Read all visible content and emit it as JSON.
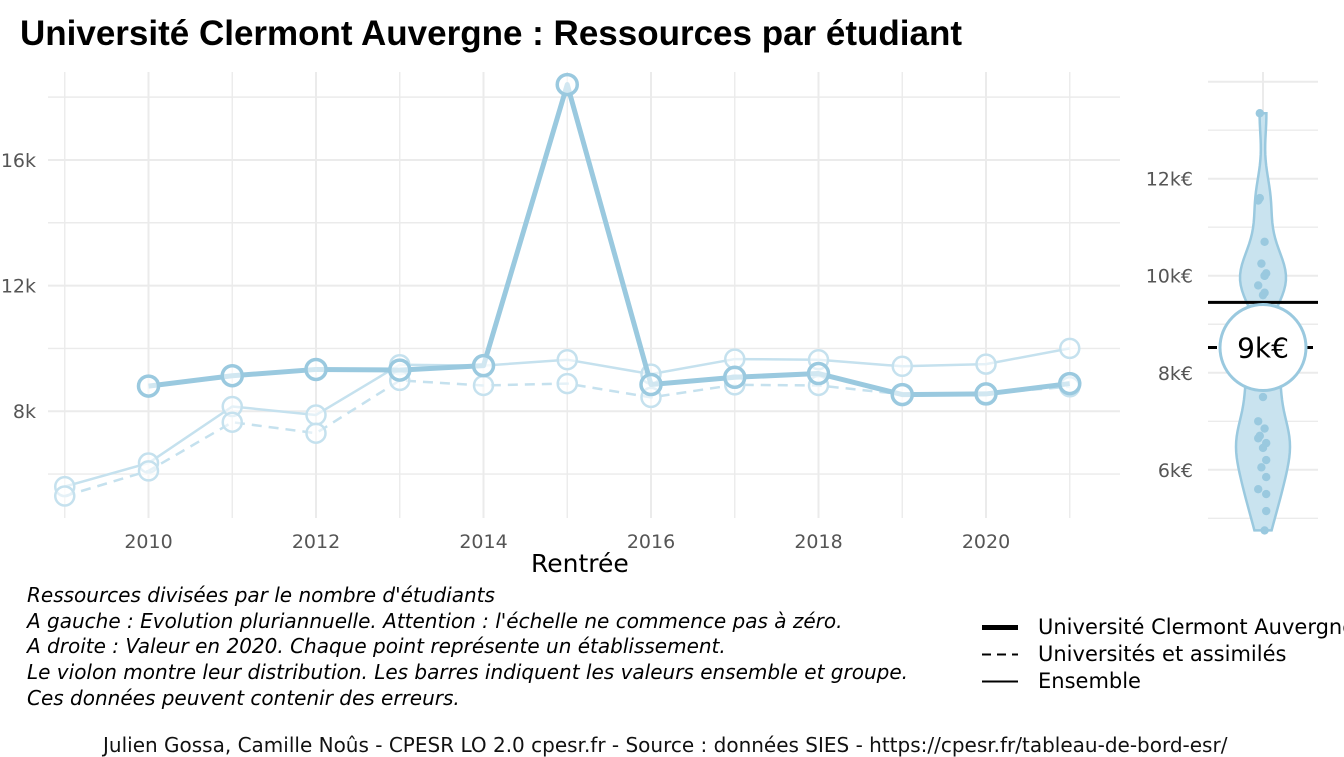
{
  "title": "Université Clermont Auvergne  :  Ressources par étudiant",
  "xlabel": "Rentrée",
  "notes": [
    "Ressources divisées par le nombre d'étudiants",
    "A gauche : Evolution pluriannuelle. Attention : l'échelle ne commence pas à zéro.",
    "A droite : Valeur en 2020. Chaque point représente un établissement.",
    "Le violon montre leur distribution. Les barres indiquent les valeurs ensemble et groupe.",
    "Ces données peuvent contenir des erreurs."
  ],
  "legend": [
    {
      "label": "Université Clermont Auvergne",
      "style": "thick-solid"
    },
    {
      "label": "Universités et assimilés",
      "style": "dashed"
    },
    {
      "label": "Ensemble",
      "style": "thin-solid"
    }
  ],
  "caption": "Julien Gossa, Camille Noûs - CPESR LO 2.0 cpesr.fr - Source : données SIES - https://cpesr.fr/tableau-de-bord-esr/",
  "colors": {
    "line": "#9ac9df",
    "line_light": "#c5e1ee",
    "grid": "#ebebeb",
    "violin_fill": "#c9e3ef"
  },
  "chart_data": [
    {
      "type": "line",
      "xlabel": "Rentrée",
      "ylabel": "",
      "x_ticks": [
        "2010",
        "2012",
        "2014",
        "2016",
        "2018",
        "2020"
      ],
      "y_ticks": [
        "8k",
        "12k",
        "16k"
      ],
      "xlim": [
        2008.8,
        2021.6
      ],
      "ylim": [
        4600,
        18800
      ],
      "grid": true,
      "series": [
        {
          "name": "Université Clermont Auvergne",
          "style": "thick-solid",
          "x": [
            2010,
            2011,
            2012,
            2013,
            2014,
            2015,
            2016,
            2017,
            2018,
            2019,
            2020,
            2021
          ],
          "values": [
            8800,
            9130,
            9330,
            9310,
            9450,
            18400,
            8850,
            9080,
            9200,
            8530,
            8550,
            8880
          ]
        },
        {
          "name": "Universités et assimilés",
          "style": "dashed",
          "x": [
            2009,
            2010,
            2011,
            2012,
            2013,
            2014,
            2015,
            2016,
            2017,
            2018,
            2019,
            2020,
            2021
          ],
          "values": [
            5300,
            6100,
            7650,
            7300,
            8980,
            8820,
            8880,
            8440,
            8840,
            8820,
            8540,
            8570,
            8780
          ]
        },
        {
          "name": "Ensemble",
          "style": "thin-solid",
          "x": [
            2009,
            2010,
            2011,
            2012,
            2013,
            2014,
            2015,
            2016,
            2017,
            2018,
            2019,
            2020,
            2021
          ],
          "values": [
            5600,
            6350,
            8150,
            7880,
            9480,
            9450,
            9640,
            9180,
            9660,
            9640,
            9430,
            9500,
            10000
          ]
        }
      ]
    },
    {
      "type": "violin",
      "y_ticks": [
        "6k€",
        "8k€",
        "10k€",
        "12k€"
      ],
      "ylim": [
        4800,
        14200
      ],
      "ensemble_value": 9450,
      "group_value": 8520,
      "highlight_label": "9k€",
      "highlight_value": 8520,
      "points": [
        13350,
        11600,
        11550,
        10700,
        10250,
        10050,
        10000,
        10000,
        9800,
        9650,
        9600,
        8250,
        8100,
        7950,
        7700,
        7500,
        7000,
        6850,
        6700,
        6650,
        6550,
        6450,
        6200,
        6050,
        5850,
        5600,
        5500,
        5150,
        4750
      ]
    }
  ]
}
